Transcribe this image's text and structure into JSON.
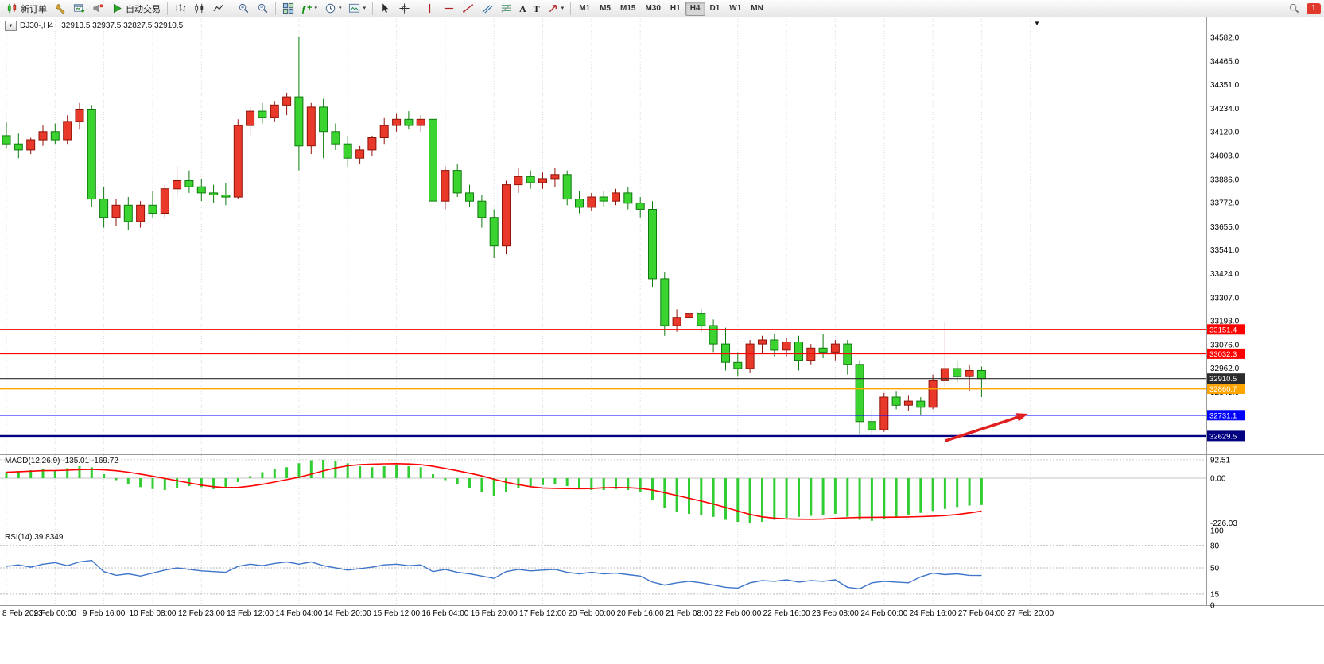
{
  "toolbar": {
    "new_order": "新订单",
    "auto_trading": "自动交易",
    "text_tool": "A",
    "label_tool": "T",
    "timeframes": [
      "M1",
      "M5",
      "M15",
      "M30",
      "H1",
      "H4",
      "D1",
      "W1",
      "MN"
    ],
    "active_timeframe": "H4",
    "notification_count": "1"
  },
  "icons": {
    "caret": "▾",
    "collapse": "▼",
    "shift_marker": "▼",
    "fx": "ƒ",
    "plus": "+"
  },
  "chart": {
    "title": "DJ30-,H4",
    "ohlc_text": "32913.5 32937.5 32827.5 32910.5"
  },
  "macd_panel": {
    "label": "MACD(12,26,9) -135.01 -169.72",
    "axis": [
      "92.51",
      "0.00",
      "-226.03"
    ]
  },
  "rsi_panel": {
    "label": "RSI(14) 39.8349",
    "axis": [
      "100",
      "80",
      "50",
      "15",
      "0"
    ]
  },
  "chart_data": {
    "type": "candlestick",
    "symbol": "DJ30-",
    "period": "H4",
    "title": "DJ30-,H4 32913.5 32937.5 32827.5 32910.5",
    "color_convention": "red-up-green-down",
    "slots": 85,
    "label_every": 4,
    "time_labels": [
      "8 Feb 2023",
      "9 Feb 00:00",
      "9 Feb 16:00",
      "10 Feb 08:00",
      "12 Feb 23:00",
      "13 Feb 12:00",
      "14 Feb 04:00",
      "14 Feb 20:00",
      "15 Feb 12:00",
      "16 Feb 04:00",
      "16 Feb 20:00",
      "17 Feb 12:00",
      "20 Feb 00:00",
      "20 Feb 16:00",
      "21 Feb 08:00",
      "22 Feb 00:00",
      "22 Feb 16:00",
      "23 Feb 08:00",
      "24 Feb 00:00",
      "24 Feb 16:00",
      "27 Feb 04:00",
      "27 Feb 20:00"
    ],
    "price_ticks": [
      34582.0,
      34465.0,
      34351.0,
      34234.0,
      34120.0,
      34003.0,
      33886.0,
      33772.0,
      33655.0,
      33541.0,
      33424.0,
      33307.0,
      33193.0,
      33076.0,
      32962.0,
      32845.0
    ],
    "levels": [
      {
        "price": 33151.4,
        "color": "#FF0000",
        "width": 1.4
      },
      {
        "price": 33032.3,
        "color": "#FF0000",
        "width": 1.4
      },
      {
        "price": 32910.5,
        "color": "#2b2b2b",
        "width": 1.1
      },
      {
        "price": 32860.7,
        "color": "#FFA500",
        "width": 1.8
      },
      {
        "price": 32731.1,
        "color": "#0000FF",
        "width": 1.4
      },
      {
        "price": 32629.5,
        "color": "#000080",
        "width": 2.4
      }
    ],
    "candles": [
      [
        34100,
        34170,
        34040,
        34060
      ],
      [
        34060,
        34110,
        33990,
        34030
      ],
      [
        34030,
        34090,
        34010,
        34080
      ],
      [
        34080,
        34150,
        34050,
        34120
      ],
      [
        34120,
        34160,
        34060,
        34080
      ],
      [
        34080,
        34200,
        34060,
        34170
      ],
      [
        34170,
        34260,
        34130,
        34230
      ],
      [
        34230,
        34250,
        33750,
        33790
      ],
      [
        33790,
        33850,
        33650,
        33700
      ],
      [
        33700,
        33790,
        33660,
        33760
      ],
      [
        33760,
        33800,
        33640,
        33680
      ],
      [
        33680,
        33780,
        33650,
        33760
      ],
      [
        33760,
        33830,
        33700,
        33720
      ],
      [
        33720,
        33860,
        33700,
        33840
      ],
      [
        33840,
        33950,
        33800,
        33880
      ],
      [
        33880,
        33930,
        33820,
        33850
      ],
      [
        33850,
        33890,
        33780,
        33820
      ],
      [
        33820,
        33860,
        33770,
        33810
      ],
      [
        33810,
        33870,
        33760,
        33800
      ],
      [
        33800,
        34180,
        33790,
        34150
      ],
      [
        34150,
        34240,
        34100,
        34220
      ],
      [
        34220,
        34260,
        34160,
        34190
      ],
      [
        34190,
        34270,
        34170,
        34250
      ],
      [
        34250,
        34310,
        34200,
        34290
      ],
      [
        34290,
        34582,
        33930,
        34050
      ],
      [
        34050,
        34260,
        34010,
        34240
      ],
      [
        34240,
        34280,
        33990,
        34120
      ],
      [
        34120,
        34160,
        34030,
        34060
      ],
      [
        34060,
        34100,
        33950,
        33990
      ],
      [
        33990,
        34050,
        33960,
        34030
      ],
      [
        34030,
        34100,
        34000,
        34090
      ],
      [
        34090,
        34190,
        34060,
        34150
      ],
      [
        34150,
        34210,
        34120,
        34180
      ],
      [
        34180,
        34220,
        34130,
        34150
      ],
      [
        34150,
        34200,
        34120,
        34180
      ],
      [
        34180,
        34230,
        33720,
        33780
      ],
      [
        33780,
        33950,
        33740,
        33930
      ],
      [
        33930,
        33960,
        33800,
        33820
      ],
      [
        33820,
        33860,
        33750,
        33780
      ],
      [
        33780,
        33810,
        33650,
        33700
      ],
      [
        33700,
        33740,
        33500,
        33560
      ],
      [
        33560,
        33880,
        33520,
        33860
      ],
      [
        33860,
        33940,
        33820,
        33900
      ],
      [
        33900,
        33930,
        33840,
        33870
      ],
      [
        33870,
        33920,
        33840,
        33890
      ],
      [
        33890,
        33940,
        33850,
        33910
      ],
      [
        33910,
        33930,
        33760,
        33790
      ],
      [
        33790,
        33830,
        33720,
        33750
      ],
      [
        33750,
        33820,
        33730,
        33800
      ],
      [
        33800,
        33830,
        33750,
        33780
      ],
      [
        33780,
        33840,
        33760,
        33820
      ],
      [
        33820,
        33850,
        33740,
        33770
      ],
      [
        33770,
        33800,
        33700,
        33740
      ],
      [
        33740,
        33780,
        33360,
        33400
      ],
      [
        33400,
        33430,
        33120,
        33170
      ],
      [
        33170,
        33250,
        33140,
        33210
      ],
      [
        33210,
        33260,
        33170,
        33230
      ],
      [
        33230,
        33250,
        33140,
        33170
      ],
      [
        33170,
        33200,
        33040,
        33080
      ],
      [
        33080,
        33160,
        32950,
        32990
      ],
      [
        32990,
        33040,
        32920,
        32960
      ],
      [
        32960,
        33100,
        32940,
        33080
      ],
      [
        33080,
        33120,
        33030,
        33100
      ],
      [
        33100,
        33130,
        33020,
        33050
      ],
      [
        33050,
        33110,
        33020,
        33090
      ],
      [
        33090,
        33120,
        32950,
        33000
      ],
      [
        33000,
        33080,
        32980,
        33060
      ],
      [
        33060,
        33130,
        33010,
        33040
      ],
      [
        33040,
        33100,
        33000,
        33080
      ],
      [
        33080,
        33100,
        32930,
        32980
      ],
      [
        32980,
        33000,
        32640,
        32700
      ],
      [
        32700,
        32760,
        32640,
        32660
      ],
      [
        32660,
        32840,
        32650,
        32820
      ],
      [
        32820,
        32850,
        32760,
        32780
      ],
      [
        32780,
        32830,
        32750,
        32800
      ],
      [
        32800,
        32820,
        32730,
        32770
      ],
      [
        32770,
        32930,
        32760,
        32900
      ],
      [
        32900,
        33190,
        32870,
        32960
      ],
      [
        32960,
        33000,
        32890,
        32920
      ],
      [
        32920,
        32980,
        32850,
        32950
      ],
      [
        32950,
        32970,
        32820,
        32910.5
      ]
    ],
    "macd": {
      "params": "12,26,9",
      "current": -135.01,
      "signal_current": -169.72,
      "signal_period": 9,
      "axis": [
        92.51,
        0,
        -226.03
      ],
      "values": [
        30,
        35,
        40,
        45,
        40,
        50,
        60,
        55,
        20,
        -10,
        -30,
        -45,
        -55,
        -60,
        -50,
        -40,
        -45,
        -55,
        -50,
        -20,
        10,
        30,
        45,
        55,
        75,
        90,
        92,
        85,
        75,
        60,
        55,
        60,
        65,
        60,
        55,
        20,
        -10,
        -30,
        -50,
        -70,
        -90,
        -70,
        -50,
        -40,
        -35,
        -30,
        -40,
        -55,
        -60,
        -60,
        -55,
        -60,
        -70,
        -110,
        -150,
        -170,
        -180,
        -185,
        -195,
        -210,
        -220,
        -226,
        -220,
        -210,
        -200,
        -195,
        -190,
        -185,
        -180,
        -195,
        -210,
        -215,
        -205,
        -195,
        -185,
        -175,
        -165,
        -155,
        -145,
        -138,
        -135.01
      ]
    },
    "rsi": {
      "period": 14,
      "current": 39.8349,
      "axis": [
        100,
        80,
        50,
        15,
        0
      ],
      "guide_levels": [
        80,
        50,
        15
      ],
      "values": [
        52,
        54,
        51,
        55,
        57,
        53,
        58,
        60,
        45,
        40,
        42,
        39,
        43,
        47,
        50,
        48,
        46,
        45,
        44,
        52,
        55,
        53,
        56,
        58,
        55,
        58,
        53,
        50,
        47,
        49,
        51,
        54,
        55,
        53,
        54,
        45,
        48,
        44,
        42,
        39,
        36,
        45,
        48,
        46,
        47,
        48,
        44,
        42,
        44,
        42,
        43,
        41,
        39,
        31,
        27,
        30,
        32,
        30,
        27,
        24,
        23,
        30,
        33,
        32,
        34,
        31,
        33,
        32,
        34,
        24,
        22,
        30,
        32,
        31,
        30,
        38,
        43,
        41,
        42,
        40,
        39.83
      ]
    },
    "colors": {
      "up": "#E8392B",
      "up_stroke": "#8f1408",
      "down": "#3AD32F",
      "down_stroke": "#0f7a0f",
      "macd_hist": "#32CD32",
      "macd_signal": "#FF0000",
      "rsi_line": "#3E74C9",
      "grid": "#dcdcdc"
    },
    "annotation_arrow": {
      "from_slot": 77,
      "from_price": 32605,
      "to_slot": 83.8,
      "to_price": 32738,
      "color": "#E02020"
    }
  }
}
